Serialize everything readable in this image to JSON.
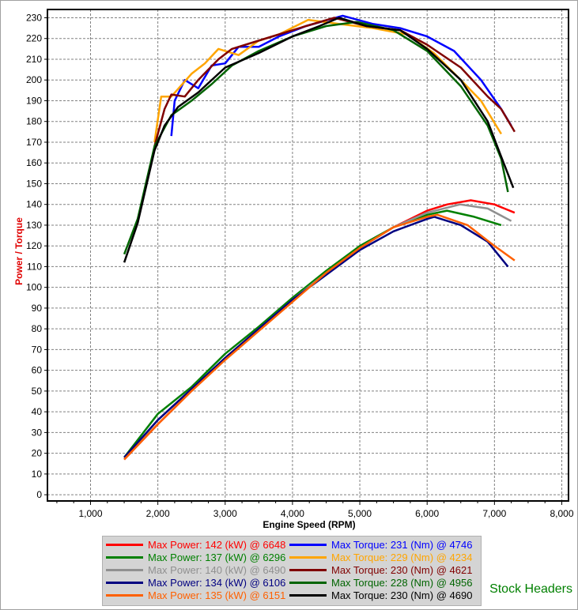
{
  "chart_data": {
    "type": "line",
    "xlabel": "Engine Speed (RPM)",
    "ylabel": "Power / Torque",
    "xlim": [
      360,
      8100
    ],
    "ylim": [
      -3,
      234
    ],
    "xticks": [
      "1,000",
      "2,000",
      "3,000",
      "4,000",
      "5,000",
      "6,000",
      "7,000",
      "8,000"
    ],
    "xtick_values": [
      1000,
      2000,
      3000,
      4000,
      5000,
      6000,
      7000,
      8000
    ],
    "yticks": [
      0,
      10,
      20,
      30,
      40,
      50,
      60,
      70,
      80,
      90,
      100,
      110,
      120,
      130,
      140,
      150,
      160,
      170,
      180,
      190,
      200,
      210,
      220,
      230
    ],
    "grid": true,
    "legend_position": "bottom",
    "series": [
      {
        "name": "Max Power: 142 (kW) @ 6648",
        "color": "#ff0000",
        "points": [
          [
            1500,
            17
          ],
          [
            2000,
            34
          ],
          [
            2500,
            50
          ],
          [
            3000,
            66
          ],
          [
            3500,
            80
          ],
          [
            4000,
            94
          ],
          [
            4500,
            107
          ],
          [
            5000,
            119
          ],
          [
            5500,
            129
          ],
          [
            6000,
            137
          ],
          [
            6300,
            140
          ],
          [
            6648,
            142
          ],
          [
            7000,
            140
          ],
          [
            7300,
            136
          ]
        ]
      },
      {
        "name": "Max Power: 137 (kW) @ 6296",
        "color": "#008000",
        "points": [
          [
            1500,
            18
          ],
          [
            2000,
            39
          ],
          [
            2500,
            52
          ],
          [
            3000,
            68
          ],
          [
            3500,
            81
          ],
          [
            4000,
            95
          ],
          [
            4500,
            108
          ],
          [
            5000,
            120
          ],
          [
            5500,
            129
          ],
          [
            6000,
            135
          ],
          [
            6296,
            137
          ],
          [
            6700,
            134
          ],
          [
            7100,
            130
          ]
        ]
      },
      {
        "name": "Max Power: 140 (kW) @ 6490",
        "color": "#909090",
        "points": [
          [
            1500,
            17
          ],
          [
            2000,
            36
          ],
          [
            2500,
            51
          ],
          [
            3000,
            66
          ],
          [
            3500,
            80
          ],
          [
            4000,
            94
          ],
          [
            4500,
            107
          ],
          [
            5000,
            119
          ],
          [
            5500,
            129
          ],
          [
            6000,
            136
          ],
          [
            6490,
            140
          ],
          [
            6900,
            138
          ],
          [
            7250,
            132
          ]
        ]
      },
      {
        "name": "Max Power: 134 (kW) @ 6106",
        "color": "#000080",
        "points": [
          [
            1500,
            18
          ],
          [
            2000,
            36
          ],
          [
            2500,
            51
          ],
          [
            3000,
            66
          ],
          [
            3500,
            80
          ],
          [
            4000,
            94
          ],
          [
            4500,
            106
          ],
          [
            5000,
            118
          ],
          [
            5500,
            127
          ],
          [
            6000,
            133
          ],
          [
            6106,
            134
          ],
          [
            6500,
            130
          ],
          [
            6900,
            122
          ],
          [
            7200,
            110
          ]
        ]
      },
      {
        "name": "Max Power: 135 (kW) @ 6151",
        "color": "#ff6000",
        "points": [
          [
            1500,
            17
          ],
          [
            2000,
            34
          ],
          [
            2500,
            50
          ],
          [
            3000,
            65
          ],
          [
            3500,
            79
          ],
          [
            4000,
            93
          ],
          [
            4500,
            107
          ],
          [
            5000,
            119
          ],
          [
            5500,
            129
          ],
          [
            6000,
            134
          ],
          [
            6151,
            135
          ],
          [
            6600,
            130
          ],
          [
            7000,
            120
          ],
          [
            7300,
            113
          ]
        ]
      },
      {
        "name": "Max Torque: 231 (Nm) @ 4746",
        "color": "#0000ff",
        "points": [
          [
            2200,
            173
          ],
          [
            2250,
            190
          ],
          [
            2400,
            200
          ],
          [
            2600,
            196
          ],
          [
            2800,
            207
          ],
          [
            3000,
            208
          ],
          [
            3200,
            216
          ],
          [
            3500,
            216
          ],
          [
            3800,
            221
          ],
          [
            4200,
            226
          ],
          [
            4746,
            231
          ],
          [
            5200,
            227
          ],
          [
            5600,
            225
          ],
          [
            6000,
            221
          ],
          [
            6400,
            214
          ],
          [
            6800,
            200
          ],
          [
            7100,
            186
          ],
          [
            7250,
            178
          ]
        ]
      },
      {
        "name": "Max Torque: 229 (Nm) @ 4234",
        "color": "#ffa500",
        "points": [
          [
            1950,
            170
          ],
          [
            2050,
            192
          ],
          [
            2200,
            192
          ],
          [
            2500,
            203
          ],
          [
            2700,
            208
          ],
          [
            2900,
            215
          ],
          [
            3200,
            212
          ],
          [
            3500,
            219
          ],
          [
            3800,
            222
          ],
          [
            4234,
            229
          ],
          [
            4700,
            227
          ],
          [
            5200,
            225
          ],
          [
            5700,
            222
          ],
          [
            6100,
            213
          ],
          [
            6500,
            200
          ],
          [
            6800,
            190
          ],
          [
            7100,
            174
          ]
        ]
      },
      {
        "name": "Max Torque: 230 (Nm) @ 4621",
        "color": "#800000",
        "points": [
          [
            1950,
            168
          ],
          [
            2100,
            186
          ],
          [
            2200,
            193
          ],
          [
            2400,
            192
          ],
          [
            2600,
            200
          ],
          [
            2900,
            210
          ],
          [
            3100,
            215
          ],
          [
            3400,
            218
          ],
          [
            3800,
            222
          ],
          [
            4200,
            226
          ],
          [
            4621,
            230
          ],
          [
            5100,
            226
          ],
          [
            5600,
            224
          ],
          [
            6000,
            217
          ],
          [
            6500,
            206
          ],
          [
            6900,
            192
          ],
          [
            7100,
            186
          ],
          [
            7300,
            175
          ]
        ]
      },
      {
        "name": "Max Torque: 228 (Nm) @ 4956",
        "color": "#006400",
        "points": [
          [
            1500,
            116
          ],
          [
            1700,
            133
          ],
          [
            1950,
            168
          ],
          [
            2200,
            183
          ],
          [
            2500,
            190
          ],
          [
            2800,
            198
          ],
          [
            3100,
            207
          ],
          [
            3500,
            214
          ],
          [
            4000,
            221
          ],
          [
            4500,
            226
          ],
          [
            4956,
            228
          ],
          [
            5500,
            224
          ],
          [
            6000,
            214
          ],
          [
            6500,
            197
          ],
          [
            6900,
            178
          ],
          [
            7100,
            162
          ],
          [
            7200,
            146
          ]
        ]
      },
      {
        "name": "Max Torque: 230 (Nm) @ 4690",
        "color": "#000000",
        "points": [
          [
            1500,
            112
          ],
          [
            1700,
            131
          ],
          [
            1950,
            166
          ],
          [
            2100,
            178
          ],
          [
            2300,
            187
          ],
          [
            2600,
            194
          ],
          [
            3000,
            206
          ],
          [
            3500,
            213
          ],
          [
            4000,
            221
          ],
          [
            4400,
            226
          ],
          [
            4690,
            230
          ],
          [
            5100,
            226
          ],
          [
            5600,
            224
          ],
          [
            6000,
            215
          ],
          [
            6500,
            200
          ],
          [
            6900,
            180
          ],
          [
            7100,
            163
          ],
          [
            7280,
            148
          ]
        ]
      }
    ]
  },
  "note": "Stock Headers"
}
